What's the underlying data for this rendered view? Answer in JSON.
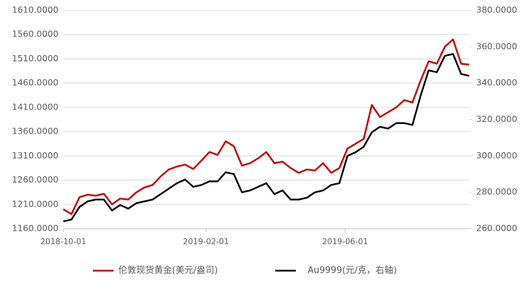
{
  "chart_data": {
    "type": "line",
    "x": [
      "2018-10-01",
      "2018-10-08",
      "2018-10-15",
      "2018-10-22",
      "2018-10-29",
      "2018-11-05",
      "2018-11-12",
      "2018-11-19",
      "2018-11-26",
      "2018-12-03",
      "2018-12-10",
      "2018-12-17",
      "2018-12-24",
      "2018-12-31",
      "2019-01-07",
      "2019-01-14",
      "2019-01-21",
      "2019-01-28",
      "2019-02-04",
      "2019-02-11",
      "2019-02-18",
      "2019-02-25",
      "2019-03-04",
      "2019-03-11",
      "2019-03-18",
      "2019-03-25",
      "2019-04-01",
      "2019-04-08",
      "2019-04-15",
      "2019-04-22",
      "2019-04-29",
      "2019-05-06",
      "2019-05-13",
      "2019-05-20",
      "2019-05-27",
      "2019-06-03",
      "2019-06-10",
      "2019-06-17",
      "2019-06-24",
      "2019-07-01",
      "2019-07-08",
      "2019-07-15",
      "2019-07-22",
      "2019-07-29",
      "2019-08-05",
      "2019-08-12",
      "2019-08-19",
      "2019-08-26",
      "2019-09-02",
      "2019-09-09",
      "2019-09-16"
    ],
    "xlim": [
      "2018-10-01",
      "2019-09-16"
    ],
    "xticks": [
      "2018-10-01",
      "2019-02-01",
      "2019-06-01"
    ],
    "series": [
      {
        "name": "伦敦现货黄金(美元/盎司)",
        "color": "#c00000",
        "values": [
          1200,
          1190,
          1225,
          1230,
          1228,
          1232,
          1210,
          1222,
          1220,
          1235,
          1245,
          1250,
          1268,
          1282,
          1288,
          1292,
          1283,
          1300,
          1318,
          1312,
          1340,
          1330,
          1290,
          1295,
          1305,
          1318,
          1295,
          1298,
          1285,
          1275,
          1282,
          1280,
          1295,
          1275,
          1285,
          1325,
          1335,
          1345,
          1415,
          1390,
          1400,
          1410,
          1425,
          1420,
          1465,
          1505,
          1500,
          1535,
          1550,
          1500,
          1498
        ]
      },
      {
        "name": "Au9999(元/克，右轴)",
        "color": "#000000",
        "axis": "y2",
        "values": [
          264,
          265,
          272,
          275,
          276,
          276,
          270,
          273,
          271,
          274,
          275,
          276,
          279,
          282,
          285,
          287,
          283,
          284,
          286,
          286,
          291,
          290,
          280,
          281,
          283,
          285,
          279,
          281,
          276,
          276,
          277,
          280,
          281,
          284,
          285,
          300,
          302,
          305,
          313,
          316,
          315,
          318,
          318,
          317,
          333,
          347,
          346,
          355,
          356,
          345,
          344
        ]
      }
    ],
    "ylim": [
      1160,
      1610
    ],
    "yticks": [
      {
        "value": 1160,
        "label": "1160.0000"
      },
      {
        "value": 1210,
        "label": "1210.0000"
      },
      {
        "value": 1260,
        "label": "1260.0000"
      },
      {
        "value": 1310,
        "label": "1310.0000"
      },
      {
        "value": 1360,
        "label": "1360.0000"
      },
      {
        "value": 1410,
        "label": "1410.0000"
      },
      {
        "value": 1460,
        "label": "1460.0000"
      },
      {
        "value": 1510,
        "label": "1510.0000"
      },
      {
        "value": 1560,
        "label": "1560.0000"
      },
      {
        "value": 1610,
        "label": "1610.0000"
      }
    ],
    "y2lim": [
      260,
      380
    ],
    "y2ticks": [
      {
        "value": 260,
        "label": "260.0000"
      },
      {
        "value": 280,
        "label": "280.0000"
      },
      {
        "value": 300,
        "label": "300.0000"
      },
      {
        "value": 320,
        "label": "320.0000"
      },
      {
        "value": 340,
        "label": "340.0000"
      },
      {
        "value": 360,
        "label": "360.0000"
      },
      {
        "value": 380,
        "label": "380.0000"
      }
    ],
    "grid": true,
    "legend": "bottom"
  }
}
